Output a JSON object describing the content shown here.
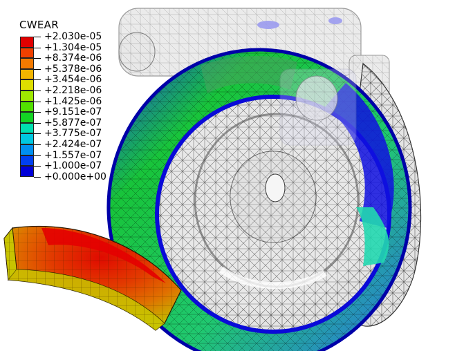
{
  "legend": {
    "title": "CWEAR",
    "colors": [
      "#e00000",
      "#f04000",
      "#f47a00",
      "#f2b500",
      "#dede00",
      "#9fe800",
      "#52e000",
      "#13d424",
      "#00e0b0",
      "#00c8e0",
      "#0090f0",
      "#0040f0",
      "#0000d8"
    ],
    "values": [
      "+2.030e-05",
      "+1.304e-05",
      "+8.374e-06",
      "+5.378e-06",
      "+3.454e-06",
      "+2.218e-06",
      "+1.425e-06",
      "+9.151e-07",
      "+5.877e-07",
      "+3.775e-07",
      "+2.424e-07",
      "+1.557e-07",
      "+1.000e-07",
      "+0.000e+00"
    ]
  }
}
